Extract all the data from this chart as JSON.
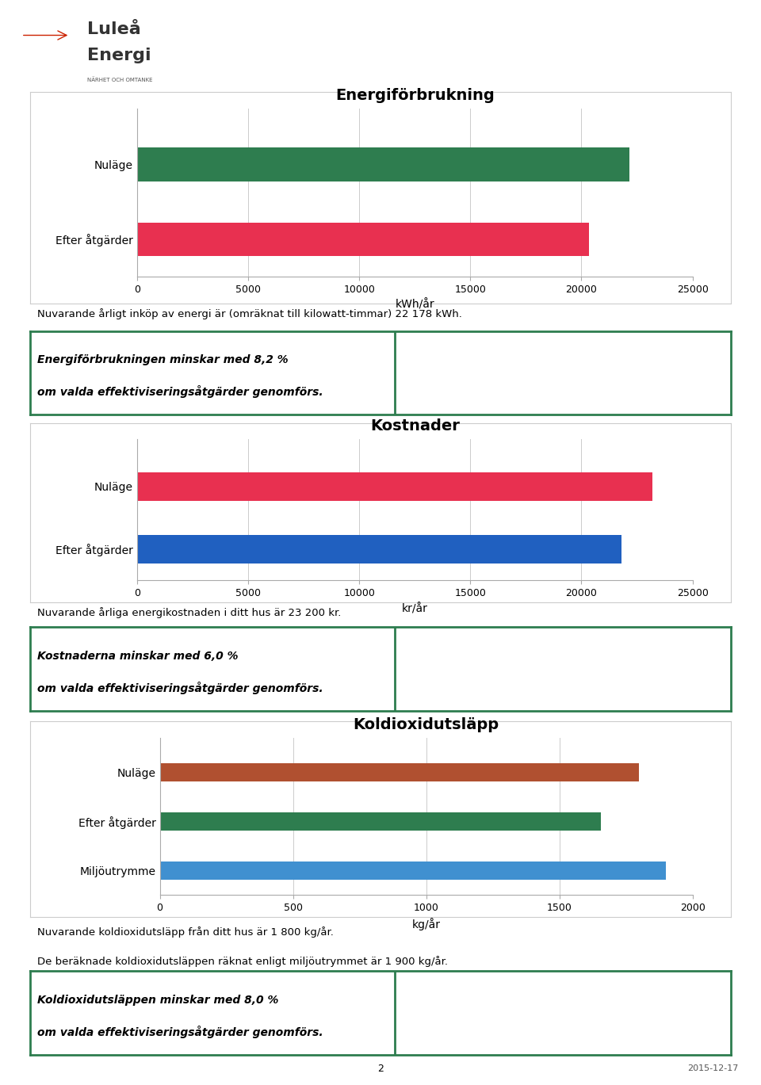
{
  "page_bg": "#f5f5f5",
  "chart_bg": "#f0f0f0",
  "chart1_title": "Energiförbrukning",
  "chart1_categories": [
    "Nuläge",
    "Efter åtgärder"
  ],
  "chart1_values": [
    22178,
    20356
  ],
  "chart1_colors": [
    "#2e7d4f",
    "#e83050"
  ],
  "chart1_xlim": [
    0,
    25000
  ],
  "chart1_xticks": [
    0,
    5000,
    10000,
    15000,
    20000,
    25000
  ],
  "chart1_xlabel": "kWh/år",
  "chart1_note": "Nuvarande årligt inköp av energi är (omräknat till kilowatt-timmar) 22 178 kWh.",
  "chart1_box_text1": "Energiförbrukningen minskar med 8,2 %",
  "chart1_box_text2": "om valda effektiviseringsåtgärder genomförs.",
  "chart2_title": "Kostnader",
  "chart2_categories": [
    "Nuläge",
    "Efter åtgärder"
  ],
  "chart2_values": [
    23200,
    21808
  ],
  "chart2_colors": [
    "#e83050",
    "#2060c0"
  ],
  "chart2_xlim": [
    0,
    25000
  ],
  "chart2_xticks": [
    0,
    5000,
    10000,
    15000,
    20000,
    25000
  ],
  "chart2_xlabel": "kr/år",
  "chart2_note": "Nuvarande årliga energikostnaden i ditt hus är 23 200 kr.",
  "chart2_box_text1": "Kostnaderna minskar med 6,0 %",
  "chart2_box_text2": "om valda effektiviseringsåtgärder genomförs.",
  "chart3_title": "Koldioxidutsläpp",
  "chart3_categories": [
    "Nuläge",
    "Efter åtgärder",
    "Miljöutrymme"
  ],
  "chart3_values": [
    1800,
    1656,
    1900
  ],
  "chart3_colors": [
    "#b05030",
    "#2e7d4f",
    "#4090d0"
  ],
  "chart3_xlim": [
    0,
    2000
  ],
  "chart3_xticks": [
    0,
    500,
    1000,
    1500,
    2000
  ],
  "chart3_xlabel": "kg/år",
  "chart3_note1": "Nuvarande koldioxidutsläpp från ditt hus är 1 800 kg/år.",
  "chart3_note2": "De beräknade koldioxidutsläppen räknat enligt miljöutrymmet är 1 900 kg/år.",
  "chart3_box_text1": "Koldioxidutsläppen minskar med 8,0 %",
  "chart3_box_text2": "om valda effektiviseringsåtgärder genomförs.",
  "footer_page": "2",
  "footer_date": "2015-12-17"
}
